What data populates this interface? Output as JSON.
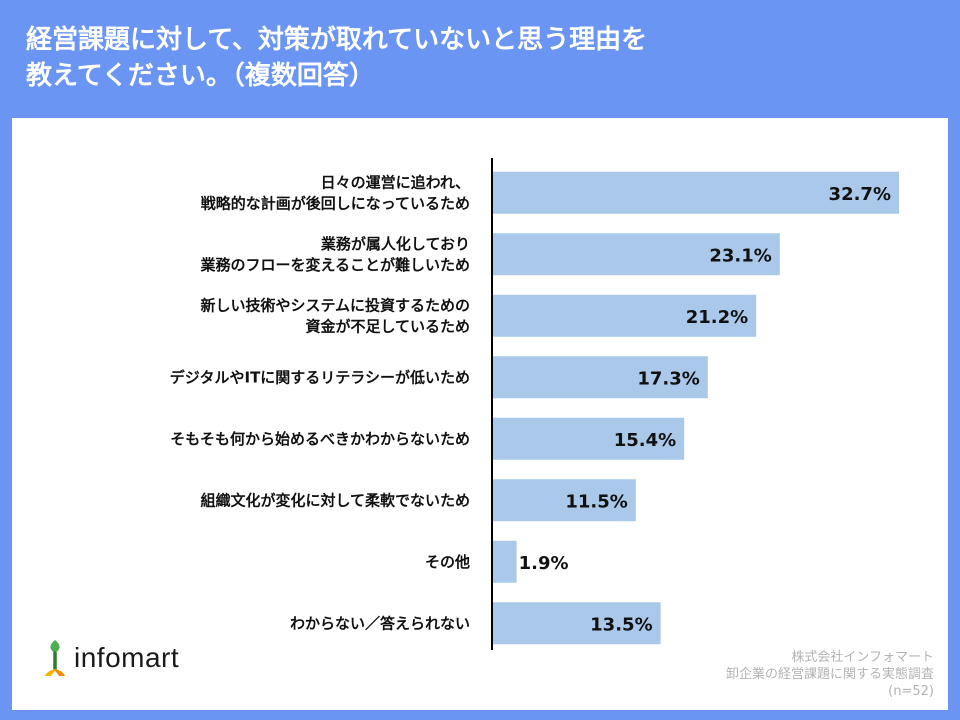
{
  "title": "経営課題に対して、対策が取れていないと思う理由を\n教えてください。（複数回答）",
  "brand": {
    "name": "infomart",
    "icon": "infomart-logo-icon"
  },
  "credit": {
    "company": "株式会社インフォマート",
    "survey": "卸企業の経営課題に関する実態調査",
    "sample": "(n=52)"
  },
  "colors": {
    "background": "#6b95f2",
    "panel": "#ffffff",
    "bar": "#a9c8ea",
    "axis": "#000000",
    "text": "#111111",
    "credit": "#b3b3b3"
  },
  "chart_data": {
    "type": "bar",
    "orientation": "horizontal",
    "title": "経営課題に対して、対策が取れていないと思う理由を教えてください。（複数回答）",
    "xlabel": "",
    "ylabel": "",
    "xlim": [
      0,
      32.7
    ],
    "grid": false,
    "legend": "none",
    "categories": [
      [
        "日々の運営に追われ、",
        "戦略的な計画が後回しになっているため"
      ],
      [
        "業務が属人化しており",
        "業務のフローを変えることが難しいため"
      ],
      [
        "新しい技術やシステムに投資するための",
        "資金が不足しているため"
      ],
      [
        "デジタルやITに関するリテラシーが低いため"
      ],
      [
        "そもそも何から始めるべきかわからないため"
      ],
      [
        "組織文化が変化に対して柔軟でないため"
      ],
      [
        "その他"
      ],
      [
        "わからない／答えられない"
      ]
    ],
    "values": [
      32.7,
      23.1,
      21.2,
      17.3,
      15.4,
      11.5,
      1.9,
      13.5
    ],
    "value_labels": [
      "32.7%",
      "23.1%",
      "21.2%",
      "17.3%",
      "15.4%",
      "11.5%",
      "1.9%",
      "13.5%"
    ]
  }
}
